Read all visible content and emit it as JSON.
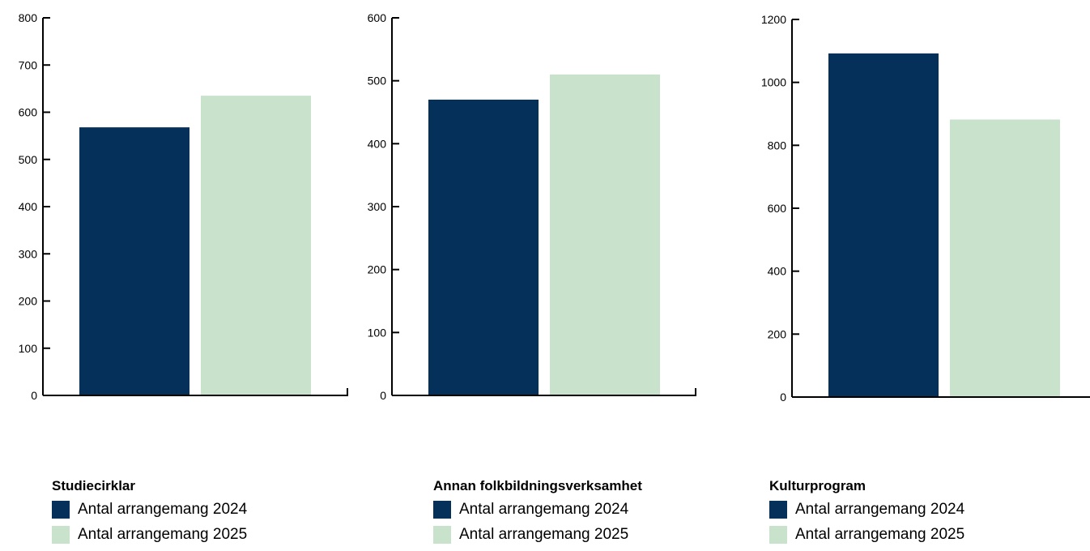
{
  "colors": {
    "series_2024": "#04305a",
    "series_2025": "#c8e2cc",
    "axis": "#000000"
  },
  "chart_data": [
    {
      "type": "bar",
      "title": "Studiecirklar",
      "categories": [
        ""
      ],
      "series": [
        {
          "name": "Antal arrangemang 2024",
          "values": [
            568
          ]
        },
        {
          "name": "Antal arrangemang 2025",
          "values": [
            635
          ]
        }
      ],
      "ylim": [
        0,
        800
      ],
      "yticks": [
        0,
        100,
        200,
        300,
        400,
        500,
        600,
        700,
        800
      ],
      "legend": "bottom"
    },
    {
      "type": "bar",
      "title": "Annan folkbildningsverksamhet",
      "categories": [
        ""
      ],
      "series": [
        {
          "name": "Antal arrangemang 2024",
          "values": [
            470
          ]
        },
        {
          "name": "Antal arrangemang 2025",
          "values": [
            510
          ]
        }
      ],
      "ylim": [
        0,
        600
      ],
      "yticks": [
        0,
        100,
        200,
        300,
        400,
        500,
        600
      ],
      "legend": "bottom"
    },
    {
      "type": "bar",
      "title": "Kulturprogram",
      "categories": [
        ""
      ],
      "series": [
        {
          "name": "Antal arrangemang 2024",
          "values": [
            1092
          ]
        },
        {
          "name": "Antal arrangemang 2025",
          "values": [
            882
          ]
        }
      ],
      "ylim": [
        0,
        1200
      ],
      "yticks": [
        0,
        200,
        400,
        600,
        800,
        1000,
        1200
      ],
      "legend": "bottom"
    }
  ]
}
